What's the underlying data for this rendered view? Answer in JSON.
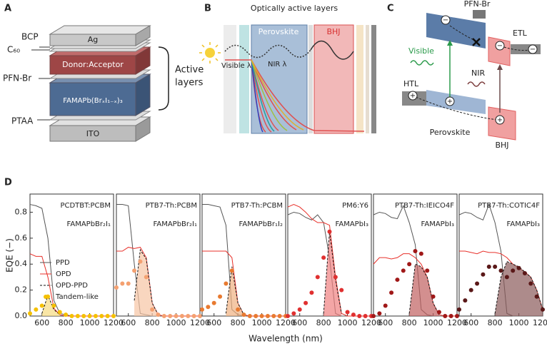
{
  "panel_a": {
    "label": "A",
    "layers": [
      "Ag",
      "Donor:Acceptor",
      "FAMAPb(BrₓI₁₋ₓ)₃",
      "ITO"
    ],
    "side_labels": [
      "BCP",
      "C₆₀",
      "PFN-Br",
      "PTAA"
    ],
    "bracket_label": [
      "Active",
      "layers"
    ]
  },
  "panel_b": {
    "label": "B",
    "title": "Optically active layers",
    "perovskite": "Perovskite",
    "bhj": "BHJ",
    "visible": "Visible λ",
    "nir": "NIR λ"
  },
  "panel_c": {
    "label": "C",
    "pfn": "PFN-Br",
    "etl": "ETL",
    "visible": "Visible",
    "nir": "NIR",
    "htl": "HTL",
    "perovskite": "Perovskite",
    "bhj": "BHJ",
    "minus": "−",
    "plus": "+"
  },
  "panel_d": {
    "label": "D",
    "xlabel": "Wavelength (nm)",
    "ylabel": "EQE (−)"
  },
  "chart_data": [
    {
      "type": "line",
      "title": "PCDTBT:PCBM",
      "subtitle": "FAMAPbBr₂I₁",
      "legend": "left",
      "x": [
        500,
        550,
        600,
        650,
        700,
        750,
        800,
        850,
        900,
        950,
        1000,
        1050,
        1100,
        1150,
        1200
      ],
      "xlim": [
        500,
        1200
      ],
      "xticks": [
        600,
        800,
        1000,
        1200
      ],
      "ylim": [
        0,
        0.94
      ],
      "yticks": [
        {
          "value": 0,
          "label": "0.0"
        },
        {
          "value": 0.2,
          "label": "0.2"
        },
        {
          "value": 0.4,
          "label": "0.4"
        },
        {
          "value": 0.6,
          "label": "0.6"
        },
        {
          "value": 0.8,
          "label": "0.8"
        }
      ],
      "series": [
        {
          "name": "PPD",
          "color": "#555555",
          "values": [
            0.86,
            0.85,
            0.83,
            0.6,
            0.12,
            0.02,
            0.01,
            0,
            0,
            0,
            0,
            0,
            0,
            0,
            0
          ]
        },
        {
          "name": "OPD",
          "color": "#e8302a",
          "values": [
            0.48,
            0.46,
            0.46,
            0.3,
            0.06,
            0.01,
            0,
            0,
            0,
            0,
            0,
            0,
            0,
            0,
            0
          ]
        },
        {
          "name": "OPD-PPD",
          "color": "#111111",
          "dash": true,
          "fill": "#f7dc80",
          "values": [
            null,
            null,
            0.02,
            0.16,
            0.05,
            0.01,
            null,
            null,
            null,
            null,
            null,
            null,
            null,
            null,
            null
          ]
        },
        {
          "name": "Tandem-like",
          "color": "#f5c000",
          "marker": true,
          "values": [
            0.02,
            0.05,
            0.08,
            0.15,
            0.08,
            0.03,
            0.01,
            0,
            0,
            0,
            0,
            0,
            0,
            0,
            0
          ]
        }
      ]
    },
    {
      "type": "line",
      "title": "PTB7-Th:PCBM",
      "subtitle": "FAMAPbBr₂I₁",
      "x": [
        500,
        550,
        600,
        650,
        700,
        750,
        800,
        850,
        900,
        950,
        1000,
        1050,
        1100,
        1150,
        1200
      ],
      "xlim": [
        500,
        1200
      ],
      "xticks": [
        600,
        800,
        1000,
        1200
      ],
      "ylim": [
        0,
        0.94
      ],
      "series": [
        {
          "name": "PPD",
          "color": "#555555",
          "values": [
            0.86,
            0.86,
            0.85,
            0.4,
            0.02,
            0.01,
            0,
            0,
            0,
            0,
            0,
            0,
            0,
            0,
            0
          ]
        },
        {
          "name": "OPD",
          "color": "#e8302a",
          "values": [
            0.5,
            0.5,
            0.53,
            0.52,
            0.53,
            0.45,
            0.1,
            0.01,
            0,
            0,
            0,
            0,
            0,
            0,
            0
          ]
        },
        {
          "name": "OPD-PPD",
          "color": "#111111",
          "dash": true,
          "fill": "#f6c4a4",
          "values": [
            null,
            null,
            null,
            0.12,
            0.51,
            0.44,
            0.1,
            0.01,
            null,
            null,
            null,
            null,
            null,
            null,
            null
          ]
        },
        {
          "name": "Tandem-like",
          "color": "#f4a070",
          "marker": true,
          "values": [
            0.22,
            0.25,
            0.25,
            0.35,
            0.42,
            0.3,
            0.05,
            0.01,
            0,
            0,
            0,
            0,
            0,
            0,
            0
          ]
        }
      ]
    },
    {
      "type": "line",
      "title": "PTB7-Th:PCBM",
      "subtitle": "FAMAPbBr₁I₂",
      "x": [
        500,
        550,
        600,
        650,
        700,
        750,
        800,
        850,
        900,
        950,
        1000,
        1050,
        1100,
        1150,
        1200
      ],
      "xlim": [
        500,
        1200
      ],
      "xticks": [
        600,
        800,
        1000,
        1200
      ],
      "ylim": [
        0,
        0.94
      ],
      "series": [
        {
          "name": "PPD",
          "color": "#555555",
          "values": [
            0.86,
            0.86,
            0.85,
            0.84,
            0.7,
            0.05,
            0.01,
            0,
            0,
            0,
            0,
            0,
            0,
            0,
            0
          ]
        },
        {
          "name": "OPD",
          "color": "#e8302a",
          "values": [
            0.5,
            0.5,
            0.5,
            0.5,
            0.5,
            0.45,
            0.1,
            0.01,
            0,
            0,
            0,
            0,
            0,
            0,
            0
          ]
        },
        {
          "name": "OPD-PPD",
          "color": "#111111",
          "dash": true,
          "fill": "#f0b080",
          "values": [
            null,
            null,
            null,
            null,
            0.02,
            0.38,
            0.1,
            0.01,
            null,
            null,
            null,
            null,
            null,
            null,
            null
          ]
        },
        {
          "name": "Tandem-like",
          "color": "#e87a30",
          "marker": true,
          "values": [
            0.05,
            0.07,
            0.1,
            0.15,
            0.25,
            0.35,
            0.05,
            0.01,
            0,
            0,
            0,
            0,
            0,
            0,
            0
          ]
        }
      ]
    },
    {
      "type": "line",
      "title": "PM6:Y6",
      "subtitle": "FAMAPbI₃",
      "x": [
        500,
        550,
        600,
        650,
        700,
        750,
        800,
        850,
        900,
        950,
        1000,
        1050,
        1100,
        1150,
        1200
      ],
      "xlim": [
        500,
        1200
      ],
      "xticks": [
        600,
        800,
        1000,
        1200
      ],
      "ylim": [
        0,
        0.94
      ],
      "series": [
        {
          "name": "PPD",
          "color": "#555555",
          "values": [
            0.78,
            0.8,
            0.79,
            0.76,
            0.74,
            0.78,
            0.72,
            0.45,
            0.02,
            0,
            0,
            0,
            0,
            0,
            0
          ]
        },
        {
          "name": "OPD",
          "color": "#e8302a",
          "values": [
            0.84,
            0.86,
            0.84,
            0.8,
            0.75,
            0.72,
            0.72,
            0.7,
            0.3,
            0.02,
            0,
            0,
            0,
            0,
            0
          ]
        },
        {
          "name": "OPD-PPD",
          "color": "#111111",
          "dash": true,
          "fill": "#ef8080",
          "values": [
            null,
            null,
            null,
            null,
            null,
            null,
            0.02,
            0.65,
            0.28,
            0.02,
            null,
            null,
            null,
            null,
            null
          ]
        },
        {
          "name": "Tandem-like",
          "color": "#e03030",
          "marker": true,
          "values": [
            0,
            0.02,
            0.05,
            0.1,
            0.18,
            0.3,
            0.45,
            0.65,
            0.3,
            0.2,
            0.03,
            0.01,
            0,
            0,
            0
          ]
        }
      ]
    },
    {
      "type": "line",
      "title": "PTB7-Th:IEICO4F",
      "subtitle": "FAMAPbI₃",
      "x": [
        500,
        550,
        600,
        650,
        700,
        750,
        800,
        850,
        900,
        950,
        1000,
        1050,
        1100,
        1150,
        1200
      ],
      "xlim": [
        500,
        1200
      ],
      "xticks": [
        600,
        800,
        1000,
        1200
      ],
      "ylim": [
        0,
        0.94
      ],
      "series": [
        {
          "name": "PPD",
          "color": "#555555",
          "values": [
            0.78,
            0.8,
            0.79,
            0.76,
            0.75,
            0.85,
            0.72,
            0.55,
            0.05,
            0.01,
            0,
            0,
            0,
            0,
            0
          ]
        },
        {
          "name": "OPD",
          "color": "#e8302a",
          "values": [
            0.4,
            0.45,
            0.45,
            0.44,
            0.45,
            0.48,
            0.48,
            0.45,
            0.4,
            0.3,
            0.1,
            0.01,
            0,
            0,
            0
          ]
        },
        {
          "name": "OPD-PPD",
          "color": "#111111",
          "dash": true,
          "fill": "#c06060",
          "values": [
            null,
            null,
            null,
            null,
            null,
            null,
            0.02,
            0.4,
            0.38,
            0.3,
            0.1,
            0.01,
            null,
            null,
            null
          ]
        },
        {
          "name": "Tandem-like",
          "color": "#a01818",
          "marker": true,
          "values": [
            0,
            0.02,
            0.08,
            0.18,
            0.28,
            0.35,
            0.4,
            0.5,
            0.48,
            0.35,
            0.15,
            0.03,
            0,
            0,
            0
          ]
        }
      ]
    },
    {
      "type": "line",
      "title": "PTB7-Th:COTIC4F",
      "subtitle": "FAMAPbI₃",
      "x": [
        500,
        550,
        600,
        650,
        700,
        750,
        800,
        850,
        900,
        950,
        1000,
        1050,
        1100,
        1150,
        1200
      ],
      "xlim": [
        500,
        1200
      ],
      "xticks": [
        600,
        800,
        1000,
        1200
      ],
      "ylim": [
        0,
        0.94
      ],
      "series": [
        {
          "name": "PPD",
          "color": "#555555",
          "values": [
            0.78,
            0.8,
            0.79,
            0.76,
            0.74,
            0.86,
            0.72,
            0.5,
            0.02,
            0,
            0,
            0,
            0,
            0,
            0
          ]
        },
        {
          "name": "OPD",
          "color": "#e8302a",
          "values": [
            0.5,
            0.5,
            0.49,
            0.48,
            0.5,
            0.49,
            0.49,
            0.48,
            0.45,
            0.4,
            0.37,
            0.34,
            0.3,
            0.2,
            0.05
          ]
        },
        {
          "name": "OPD-PPD",
          "color": "#111111",
          "dash": true,
          "fill": "#8a5a5a",
          "values": [
            null,
            null,
            null,
            null,
            null,
            null,
            0.02,
            0.3,
            0.42,
            0.4,
            0.38,
            0.34,
            0.3,
            0.2,
            0.05
          ]
        },
        {
          "name": "Tandem-like",
          "color": "#5a1818",
          "marker": true,
          "values": [
            0.05,
            0.12,
            0.2,
            0.25,
            0.32,
            0.38,
            0.38,
            0.35,
            0.3,
            0.35,
            0.37,
            0.33,
            0.25,
            0.15,
            0.05
          ]
        }
      ]
    }
  ]
}
